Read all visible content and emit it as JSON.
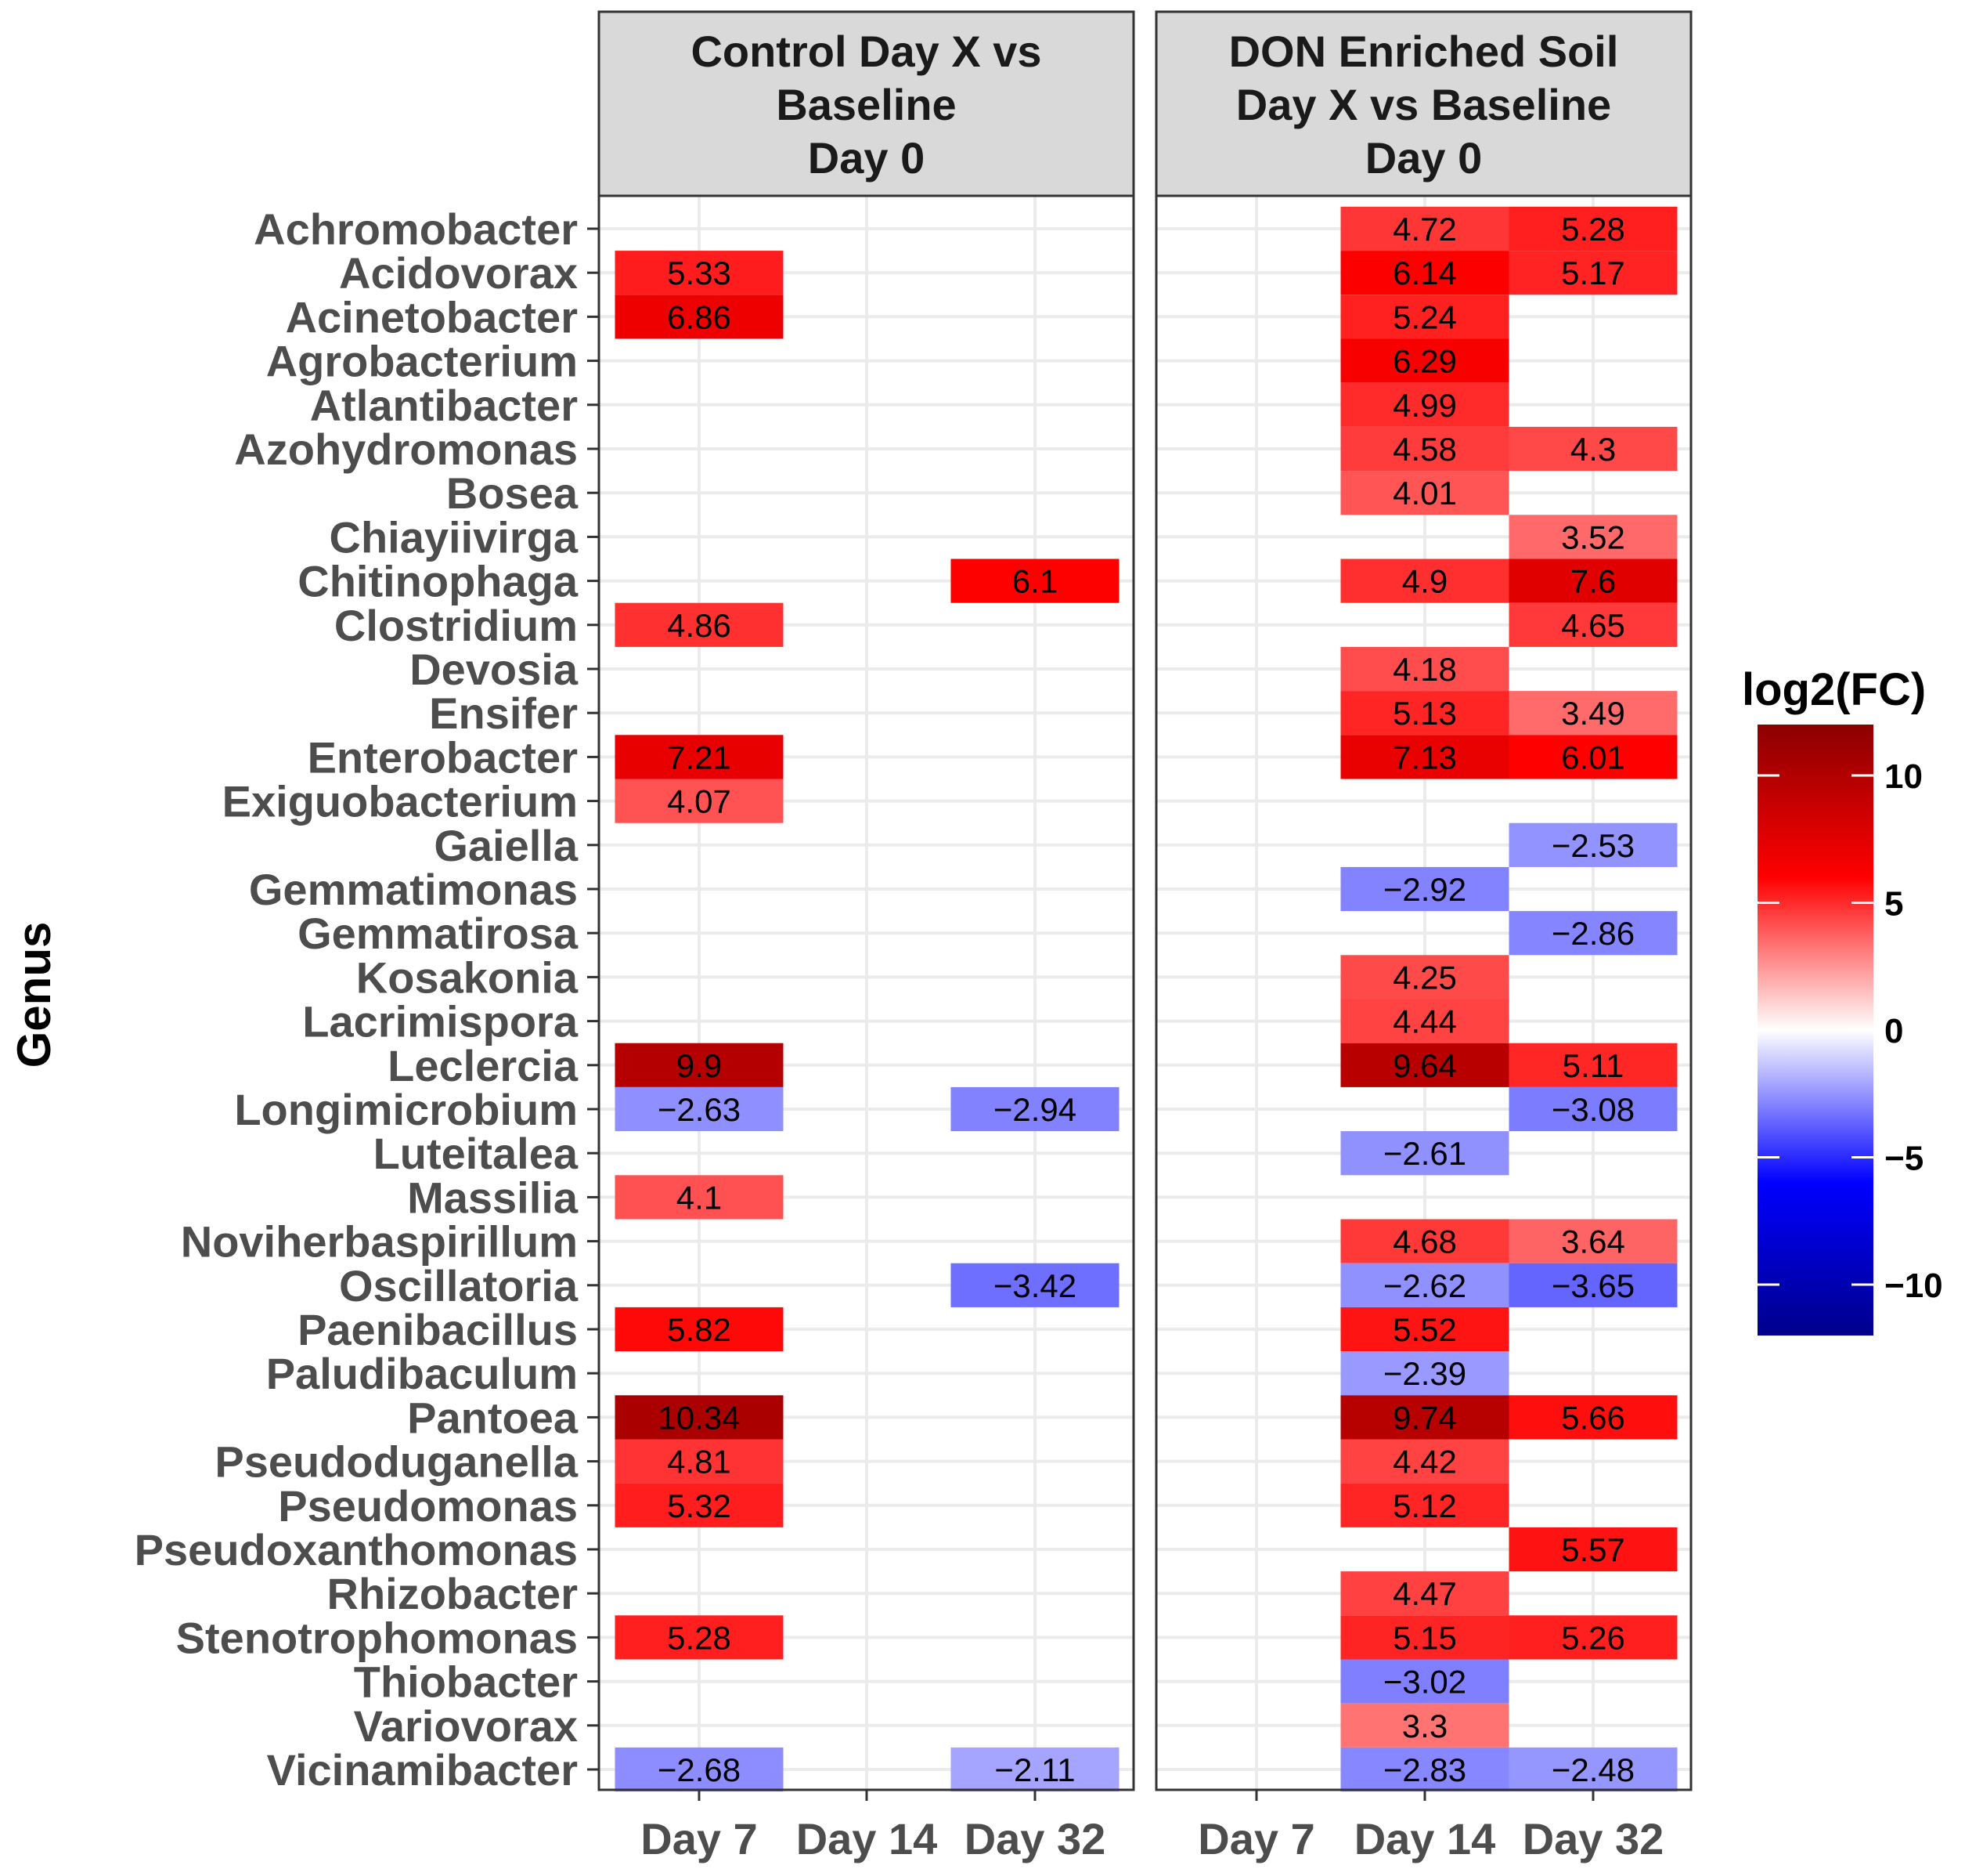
{
  "chart_data": {
    "type": "heatmap",
    "ylabel": "Genus",
    "x_categories": [
      "Day 7",
      "Day 14",
      "Day 32"
    ],
    "genera": [
      "Achromobacter",
      "Acidovorax",
      "Acinetobacter",
      "Agrobacterium",
      "Atlantibacter",
      "Azohydromonas",
      "Bosea",
      "Chiayiivirga",
      "Chitinophaga",
      "Clostridium",
      "Devosia",
      "Ensifer",
      "Enterobacter",
      "Exiguobacterium",
      "Gaiella",
      "Gemmatimonas",
      "Gemmatirosa",
      "Kosakonia",
      "Lacrimispora",
      "Leclercia",
      "Longimicrobium",
      "Luteitalea",
      "Massilia",
      "Noviherbaspirillum",
      "Oscillatoria",
      "Paenibacillus",
      "Paludibaculum",
      "Pantoea",
      "Pseudoduganella",
      "Pseudomonas",
      "Pseudoxanthomonas",
      "Rhizobacter",
      "Stenotrophomonas",
      "Thiobacter",
      "Variovorax",
      "Vicinamibacter"
    ],
    "panels": [
      {
        "title_lines": [
          "Control Day X vs",
          "Baseline",
          "Day 0"
        ],
        "cells": [
          {
            "genus": "Acidovorax",
            "day": "Day 7",
            "value": 5.33,
            "label": "5.33"
          },
          {
            "genus": "Acinetobacter",
            "day": "Day 7",
            "value": 6.86,
            "label": "6.86"
          },
          {
            "genus": "Chitinophaga",
            "day": "Day 32",
            "value": 6.1,
            "label": "6.1"
          },
          {
            "genus": "Clostridium",
            "day": "Day 7",
            "value": 4.86,
            "label": "4.86"
          },
          {
            "genus": "Enterobacter",
            "day": "Day 7",
            "value": 7.21,
            "label": "7.21"
          },
          {
            "genus": "Exiguobacterium",
            "day": "Day 7",
            "value": 4.07,
            "label": "4.07"
          },
          {
            "genus": "Leclercia",
            "day": "Day 7",
            "value": 9.9,
            "label": "9.9"
          },
          {
            "genus": "Longimicrobium",
            "day": "Day 7",
            "value": -2.63,
            "label": "−2.63"
          },
          {
            "genus": "Longimicrobium",
            "day": "Day 32",
            "value": -2.94,
            "label": "−2.94"
          },
          {
            "genus": "Massilia",
            "day": "Day 7",
            "value": 4.1,
            "label": "4.1"
          },
          {
            "genus": "Oscillatoria",
            "day": "Day 32",
            "value": -3.42,
            "label": "−3.42"
          },
          {
            "genus": "Paenibacillus",
            "day": "Day 7",
            "value": 5.82,
            "label": "5.82"
          },
          {
            "genus": "Pantoea",
            "day": "Day 7",
            "value": 10.34,
            "label": "10.34"
          },
          {
            "genus": "Pseudoduganella",
            "day": "Day 7",
            "value": 4.81,
            "label": "4.81"
          },
          {
            "genus": "Pseudomonas",
            "day": "Day 7",
            "value": 5.32,
            "label": "5.32"
          },
          {
            "genus": "Stenotrophomonas",
            "day": "Day 7",
            "value": 5.28,
            "label": "5.28"
          },
          {
            "genus": "Vicinamibacter",
            "day": "Day 7",
            "value": -2.68,
            "label": "−2.68"
          },
          {
            "genus": "Vicinamibacter",
            "day": "Day 32",
            "value": -2.11,
            "label": "−2.11"
          }
        ]
      },
      {
        "title_lines": [
          "DON Enriched Soil",
          "Day X vs Baseline",
          "Day 0"
        ],
        "cells": [
          {
            "genus": "Achromobacter",
            "day": "Day 14",
            "value": 4.72,
            "label": "4.72"
          },
          {
            "genus": "Achromobacter",
            "day": "Day 32",
            "value": 5.28,
            "label": "5.28"
          },
          {
            "genus": "Acidovorax",
            "day": "Day 14",
            "value": 6.14,
            "label": "6.14"
          },
          {
            "genus": "Acidovorax",
            "day": "Day 32",
            "value": 5.17,
            "label": "5.17"
          },
          {
            "genus": "Acinetobacter",
            "day": "Day 14",
            "value": 5.24,
            "label": "5.24"
          },
          {
            "genus": "Agrobacterium",
            "day": "Day 14",
            "value": 6.29,
            "label": "6.29"
          },
          {
            "genus": "Atlantibacter",
            "day": "Day 14",
            "value": 4.99,
            "label": "4.99"
          },
          {
            "genus": "Azohydromonas",
            "day": "Day 14",
            "value": 4.58,
            "label": "4.58"
          },
          {
            "genus": "Azohydromonas",
            "day": "Day 32",
            "value": 4.3,
            "label": "4.3"
          },
          {
            "genus": "Bosea",
            "day": "Day 14",
            "value": 4.01,
            "label": "4.01"
          },
          {
            "genus": "Chiayiivirga",
            "day": "Day 32",
            "value": 3.52,
            "label": "3.52"
          },
          {
            "genus": "Chitinophaga",
            "day": "Day 14",
            "value": 4.9,
            "label": "4.9"
          },
          {
            "genus": "Chitinophaga",
            "day": "Day 32",
            "value": 7.6,
            "label": "7.6"
          },
          {
            "genus": "Clostridium",
            "day": "Day 32",
            "value": 4.65,
            "label": "4.65"
          },
          {
            "genus": "Devosia",
            "day": "Day 14",
            "value": 4.18,
            "label": "4.18"
          },
          {
            "genus": "Ensifer",
            "day": "Day 14",
            "value": 5.13,
            "label": "5.13"
          },
          {
            "genus": "Ensifer",
            "day": "Day 32",
            "value": 3.49,
            "label": "3.49"
          },
          {
            "genus": "Enterobacter",
            "day": "Day 14",
            "value": 7.13,
            "label": "7.13"
          },
          {
            "genus": "Enterobacter",
            "day": "Day 32",
            "value": 6.01,
            "label": "6.01"
          },
          {
            "genus": "Gaiella",
            "day": "Day 32",
            "value": -2.53,
            "label": "−2.53"
          },
          {
            "genus": "Gemmatimonas",
            "day": "Day 14",
            "value": -2.92,
            "label": "−2.92"
          },
          {
            "genus": "Gemmatirosa",
            "day": "Day 32",
            "value": -2.86,
            "label": "−2.86"
          },
          {
            "genus": "Kosakonia",
            "day": "Day 14",
            "value": 4.25,
            "label": "4.25"
          },
          {
            "genus": "Lacrimispora",
            "day": "Day 14",
            "value": 4.44,
            "label": "4.44"
          },
          {
            "genus": "Leclercia",
            "day": "Day 14",
            "value": 9.64,
            "label": "9.64"
          },
          {
            "genus": "Leclercia",
            "day": "Day 32",
            "value": 5.11,
            "label": "5.11"
          },
          {
            "genus": "Longimicrobium",
            "day": "Day 32",
            "value": -3.08,
            "label": "−3.08"
          },
          {
            "genus": "Luteitalea",
            "day": "Day 14",
            "value": -2.61,
            "label": "−2.61"
          },
          {
            "genus": "Noviherbaspirillum",
            "day": "Day 14",
            "value": 4.68,
            "label": "4.68"
          },
          {
            "genus": "Noviherbaspirillum",
            "day": "Day 32",
            "value": 3.64,
            "label": "3.64"
          },
          {
            "genus": "Oscillatoria",
            "day": "Day 14",
            "value": -2.62,
            "label": "−2.62"
          },
          {
            "genus": "Oscillatoria",
            "day": "Day 32",
            "value": -3.65,
            "label": "−3.65"
          },
          {
            "genus": "Paenibacillus",
            "day": "Day 14",
            "value": 5.52,
            "label": "5.52"
          },
          {
            "genus": "Paludibaculum",
            "day": "Day 14",
            "value": -2.39,
            "label": "−2.39"
          },
          {
            "genus": "Pantoea",
            "day": "Day 14",
            "value": 9.74,
            "label": "9.74"
          },
          {
            "genus": "Pantoea",
            "day": "Day 32",
            "value": 5.66,
            "label": "5.66"
          },
          {
            "genus": "Pseudoduganella",
            "day": "Day 14",
            "value": 4.42,
            "label": "4.42"
          },
          {
            "genus": "Pseudomonas",
            "day": "Day 14",
            "value": 5.12,
            "label": "5.12"
          },
          {
            "genus": "Pseudoxanthomonas",
            "day": "Day 32",
            "value": 5.57,
            "label": "5.57"
          },
          {
            "genus": "Rhizobacter",
            "day": "Day 14",
            "value": 4.47,
            "label": "4.47"
          },
          {
            "genus": "Stenotrophomonas",
            "day": "Day 14",
            "value": 5.15,
            "label": "5.15"
          },
          {
            "genus": "Stenotrophomonas",
            "day": "Day 32",
            "value": 5.26,
            "label": "5.26"
          },
          {
            "genus": "Thiobacter",
            "day": "Day 14",
            "value": -3.02,
            "label": "−3.02"
          },
          {
            "genus": "Variovorax",
            "day": "Day 14",
            "value": 3.3,
            "label": "3.3"
          },
          {
            "genus": "Vicinamibacter",
            "day": "Day 14",
            "value": -2.83,
            "label": "−2.83"
          },
          {
            "genus": "Vicinamibacter",
            "day": "Day 32",
            "value": -2.48,
            "label": "−2.48"
          }
        ]
      }
    ],
    "legend": {
      "title": "log2(FC)",
      "range": [
        -12,
        12
      ],
      "ticks": [
        10,
        5,
        0,
        -5,
        -10
      ],
      "tick_labels": [
        "10",
        "5",
        "0",
        "−5",
        "−10"
      ],
      "colors": {
        "low": "#00008b",
        "mid_low": "#0000ff",
        "mid": "#ffffff",
        "mid_high": "#ff0000",
        "high": "#8b0000"
      }
    },
    "grid": true
  }
}
